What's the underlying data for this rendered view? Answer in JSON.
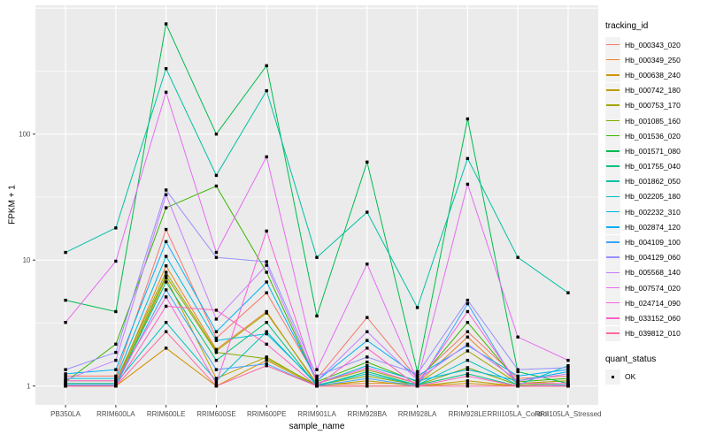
{
  "figure": {
    "bg": "#FFFFFF"
  },
  "panel": {
    "bg": "#EBEBEB",
    "grid_color": "#FFFFFF",
    "tick_color": "#333333",
    "tick_label_color": "#4D4D4D",
    "axis_title_color": "#000000",
    "legend_key_bg": "#F2F2F2"
  },
  "chart_data": {
    "type": "line",
    "title": "",
    "xlabel": "sample_name",
    "ylabel": "FPKM + 1",
    "y_scale": "log10",
    "ylim": [
      0.72,
      1050
    ],
    "grid": true,
    "legend_position": "right",
    "y_major_ticks": [
      1,
      10,
      100
    ],
    "y_tick_labels": [
      "1",
      "10",
      "100"
    ],
    "y_minor_gridlines": [
      3.162,
      31.62,
      316.2
    ],
    "y_extra_major_gridlines": [
      1000
    ],
    "categories": [
      "PB350LA",
      "RRIM600LA",
      "RRIM600LE",
      "RRIM600SE",
      "RRIM600PE",
      "RRIM901LA",
      "RRIM928BA",
      "RRIM928LA",
      "RRIM928LE",
      "RRII105LA_Control",
      "RRII105LA_Stressed"
    ],
    "legend_title": "tracking_id",
    "quant_legend": {
      "title": "quant_status",
      "items": [
        {
          "label": "OK",
          "shape": "square",
          "color": "#000000"
        }
      ]
    },
    "point": {
      "shape": "square",
      "color": "#000000",
      "size": 3.4
    },
    "series": [
      {
        "name": "Hb_000343_020",
        "color": "#F8766D",
        "values": [
          1.2,
          1.2,
          17.5,
          2.4,
          5.5,
          1.15,
          3.5,
          1.15,
          2.7,
          1.15,
          1.2
        ]
      },
      {
        "name": "Hb_000349_250",
        "color": "#E88526",
        "values": [
          1.05,
          1.05,
          9.0,
          1.95,
          3.9,
          1.02,
          1.05,
          1.05,
          2.45,
          1.05,
          1.1
        ]
      },
      {
        "name": "Hb_000638_240",
        "color": "#D39200",
        "values": [
          1.0,
          1.0,
          2.0,
          1.0,
          1.6,
          1.0,
          1.0,
          1.0,
          1.05,
          1.0,
          1.0
        ]
      },
      {
        "name": "Hb_000742_180",
        "color": "#BC9D00",
        "values": [
          1.0,
          1.0,
          7.2,
          1.15,
          1.7,
          1.0,
          1.1,
          1.0,
          1.1,
          1.0,
          1.0
        ]
      },
      {
        "name": "Hb_000753_170",
        "color": "#A3A500",
        "values": [
          1.1,
          1.1,
          8.0,
          1.9,
          3.8,
          1.05,
          1.35,
          1.05,
          1.9,
          1.05,
          1.1
        ]
      },
      {
        "name": "Hb_001085_160",
        "color": "#7CAE00",
        "values": [
          1.05,
          1.05,
          7.5,
          1.85,
          1.65,
          1.02,
          1.2,
          1.02,
          1.4,
          1.02,
          1.05
        ]
      },
      {
        "name": "Hb_001536_020",
        "color": "#39B600",
        "values": [
          1.08,
          2.15,
          26,
          38.7,
          8.0,
          1.08,
          1.55,
          1.08,
          3.2,
          1.08,
          1.15
        ]
      },
      {
        "name": "Hb_001571_080",
        "color": "#00BB4E",
        "values": [
          4.8,
          3.9,
          750,
          100,
          349,
          3.6,
          60,
          1.3,
          132,
          1.3,
          1.05
        ]
      },
      {
        "name": "Hb_001755_040",
        "color": "#00BF7D",
        "values": [
          1.02,
          1.02,
          6.7,
          1.6,
          3.2,
          1.0,
          1.3,
          1.02,
          1.25,
          1.0,
          1.02
        ]
      },
      {
        "name": "Hb_001862_050",
        "color": "#00C1A3",
        "values": [
          11.5,
          18,
          331,
          47,
          221,
          10.5,
          24,
          4.2,
          64,
          10.5,
          5.5
        ]
      },
      {
        "name": "Hb_002205_180",
        "color": "#00BFC4",
        "values": [
          1.05,
          1.05,
          3.2,
          1.1,
          2.7,
          1.02,
          1.25,
          1.02,
          1.6,
          1.02,
          1.45
        ]
      },
      {
        "name": "Hb_002232_310",
        "color": "#00BADE",
        "values": [
          1.15,
          1.15,
          10.7,
          2.3,
          2.6,
          1.05,
          1.45,
          1.1,
          1.35,
          1.1,
          1.3
        ]
      },
      {
        "name": "Hb_002874_120",
        "color": "#00B0F6",
        "values": [
          1.25,
          1.35,
          14,
          2.7,
          6.7,
          1.1,
          2.3,
          1.2,
          2.1,
          1.2,
          1.35
        ]
      },
      {
        "name": "Hb_004109_100",
        "color": "#3FA2FF",
        "values": [
          1.02,
          1.02,
          5.8,
          1.35,
          1.5,
          1.0,
          1.15,
          1.0,
          4.5,
          1.0,
          1.02
        ]
      },
      {
        "name": "Hb_004129_060",
        "color": "#9590FF",
        "values": [
          1.35,
          1.85,
          36,
          10.5,
          9.7,
          1.2,
          1.7,
          1.25,
          4.8,
          1.35,
          1.4
        ]
      },
      {
        "name": "Hb_005568_140",
        "color": "#C77CFF",
        "values": [
          1.12,
          1.6,
          33,
          3.4,
          9.1,
          1.1,
          2.7,
          1.12,
          2.15,
          1.1,
          1.25
        ]
      },
      {
        "name": "Hb_007574_020",
        "color": "#E76BF3",
        "values": [
          3.2,
          9.8,
          215,
          11.5,
          66,
          1.35,
          9.3,
          1.1,
          40,
          2.45,
          1.6
        ]
      },
      {
        "name": "Hb_024714_090",
        "color": "#FA62DB",
        "values": [
          1.1,
          1.1,
          5.1,
          1.05,
          17,
          1.05,
          1.4,
          1.05,
          3.9,
          1.05,
          1.05
        ]
      },
      {
        "name": "Hb_033152_060",
        "color": "#FF61C3",
        "values": [
          1.0,
          1.0,
          4.3,
          4.0,
          2.15,
          1.0,
          2.0,
          1.0,
          1.2,
          1.0,
          1.0
        ]
      },
      {
        "name": "Hb_039812_010",
        "color": "#FF68A1",
        "values": [
          1.0,
          1.0,
          2.7,
          1.0,
          1.45,
          1.0,
          1.0,
          1.0,
          1.0,
          1.0,
          1.0
        ]
      }
    ]
  }
}
